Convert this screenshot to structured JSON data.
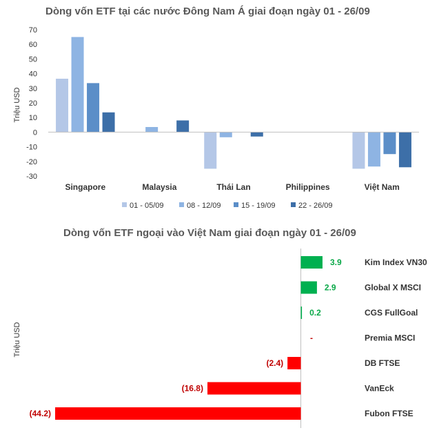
{
  "chart_data": [
    {
      "type": "bar",
      "title": "Dòng vốn ETF tại các nước Đông Nam Á giai đoạn ngày 01 - 26/09",
      "ylabel": "Triệu USD",
      "xlabel": "",
      "ylim": [
        -30,
        70
      ],
      "yticks": [
        70,
        60,
        50,
        40,
        30,
        20,
        10,
        0,
        -10,
        -20,
        -30
      ],
      "categories": [
        "Singapore",
        "Malaysia",
        "Thái Lan",
        "Philippines",
        "Việt Nam"
      ],
      "series": [
        {
          "name": "01 - 05/09",
          "color": "#b4c7e7",
          "values": [
            36.5,
            0,
            -25,
            0,
            -25
          ]
        },
        {
          "name": "08 - 12/09",
          "color": "#8eb4e3",
          "values": [
            65,
            3.5,
            -3.5,
            0,
            -23.5
          ]
        },
        {
          "name": "15 - 19/09",
          "color": "#5b8ec8",
          "values": [
            33.5,
            0,
            0,
            0,
            -15
          ]
        },
        {
          "name": "22 - 26/09",
          "color": "#3d6fa8",
          "values": [
            13.5,
            8,
            -3,
            0,
            -24
          ]
        }
      ],
      "legend": "bottom",
      "grid": false
    },
    {
      "type": "bar",
      "orientation": "horizontal",
      "title": "Dòng vốn ETF ngoại vào Việt Nam giai đoạn ngày 01 - 26/09",
      "ylabel": "Triệu USD",
      "categories": [
        "Kim Index VN30",
        "Global X MSCI",
        "CGS FullGoal",
        "Premia MSCI",
        "DB FTSE",
        "VanEck",
        "Fubon FTSE"
      ],
      "values": [
        3.9,
        2.9,
        0.2,
        0,
        -2.4,
        -16.8,
        -44.2
      ],
      "data_labels": [
        "3.9",
        "2.9",
        "0.2",
        "-",
        "(2.4)",
        "(16.8)",
        "(44.2)"
      ],
      "positive_color": "#00b050",
      "negative_color": "#ff0000"
    }
  ]
}
